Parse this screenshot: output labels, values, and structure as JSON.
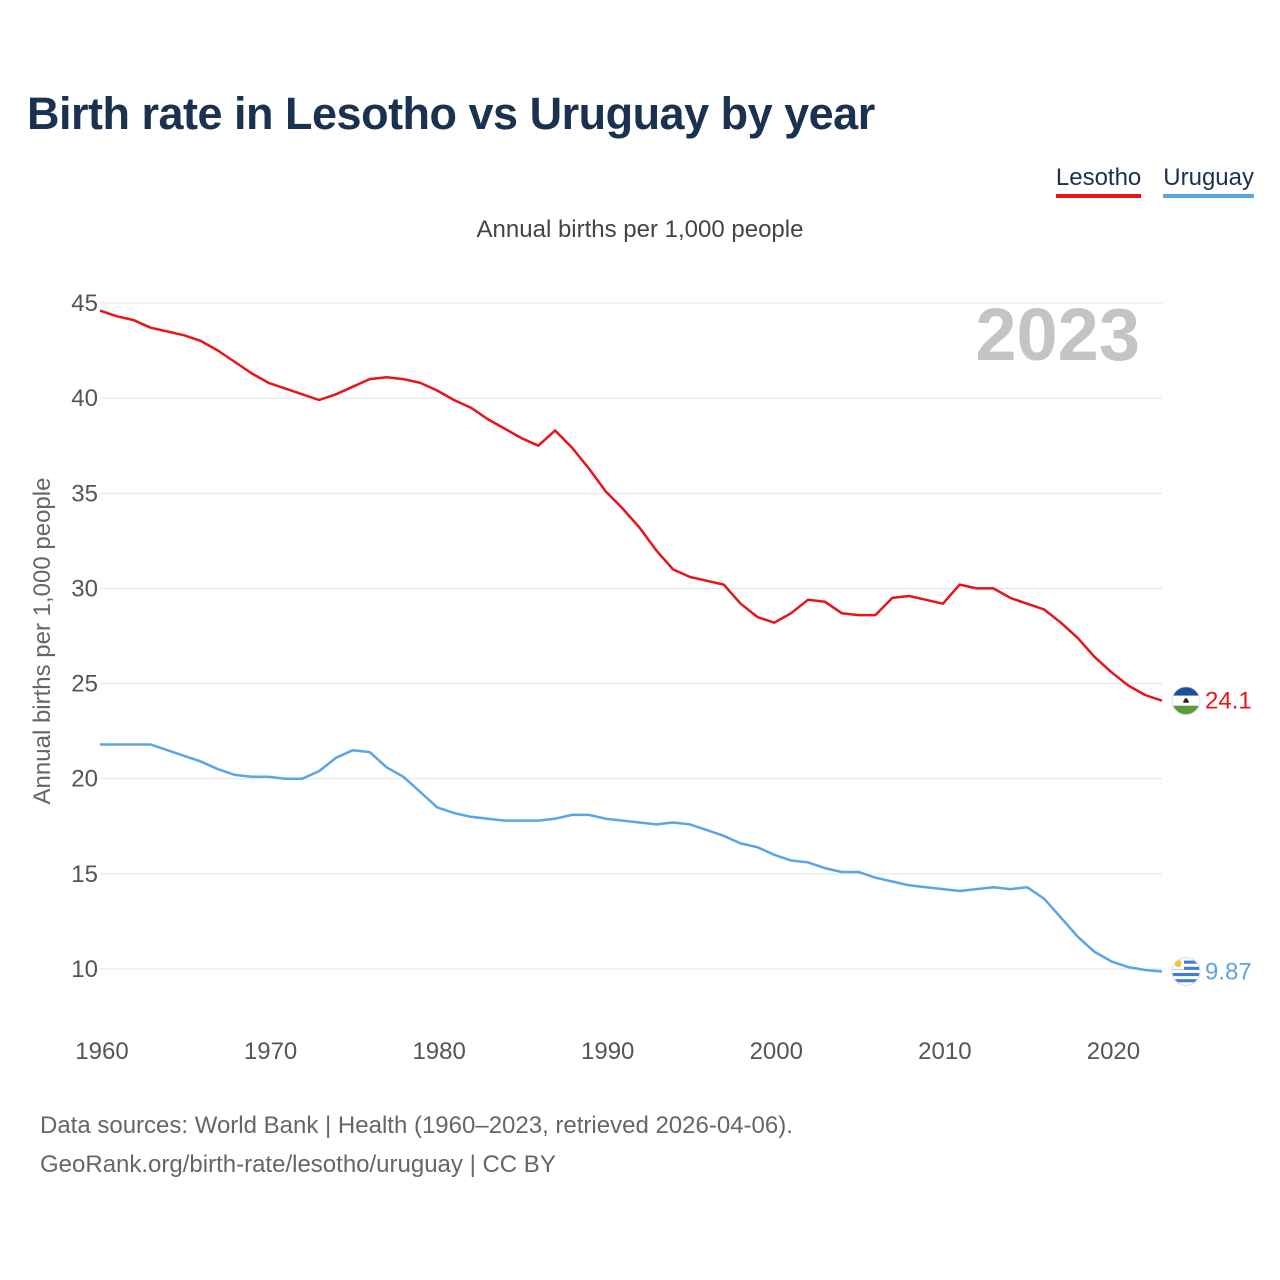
{
  "title": "Birth rate in Lesotho vs Uruguay by year",
  "legend": [
    {
      "name": "Lesotho",
      "color": "#e8141a"
    },
    {
      "name": "Uruguay",
      "color": "#5ba4e5"
    }
  ],
  "subtitle": "Annual births per 1,000 people",
  "year_label": "2023",
  "source": {
    "line1": "Data sources: World Bank | Health (1960–2023, retrieved 2026-04-06).",
    "line2": "GeoRank.org/birth-rate/lesotho/uruguay | CC BY"
  },
  "chart_data": {
    "type": "line",
    "title": "Birth rate in Lesotho vs Uruguay by year",
    "xlabel": "",
    "ylabel": "Annual births per 1,000 people",
    "xlim": [
      1960,
      2023
    ],
    "ylim": [
      10,
      45
    ],
    "xticks": [
      "1960",
      "1970",
      "1980",
      "1990",
      "2000",
      "2010",
      "2020"
    ],
    "yticks": [
      "10",
      "15",
      "20",
      "25",
      "30",
      "35",
      "40",
      "45"
    ],
    "grid": true,
    "x": [
      1960,
      1961,
      1962,
      1963,
      1964,
      1965,
      1966,
      1967,
      1968,
      1969,
      1970,
      1971,
      1972,
      1973,
      1974,
      1975,
      1976,
      1977,
      1978,
      1979,
      1980,
      1981,
      1982,
      1983,
      1984,
      1985,
      1986,
      1987,
      1988,
      1989,
      1990,
      1991,
      1992,
      1993,
      1994,
      1995,
      1996,
      1997,
      1998,
      1999,
      2000,
      2001,
      2002,
      2003,
      2004,
      2005,
      2006,
      2007,
      2008,
      2009,
      2010,
      2011,
      2012,
      2013,
      2014,
      2015,
      2016,
      2017,
      2018,
      2019,
      2020,
      2021,
      2022,
      2023
    ],
    "series": [
      {
        "name": "Lesotho",
        "color": "#e8141a",
        "end_label": "24.1",
        "values": [
          44.6,
          44.3,
          44.1,
          43.7,
          43.5,
          43.3,
          43.0,
          42.5,
          41.9,
          41.3,
          40.8,
          40.5,
          40.2,
          39.9,
          40.2,
          40.6,
          41.0,
          41.1,
          41.0,
          40.8,
          40.4,
          39.9,
          39.5,
          38.9,
          38.4,
          37.9,
          37.5,
          38.3,
          37.4,
          36.3,
          35.1,
          34.2,
          33.2,
          32.0,
          31.0,
          30.6,
          30.4,
          30.2,
          29.2,
          28.5,
          28.2,
          28.7,
          29.4,
          29.3,
          28.7,
          28.6,
          28.6,
          29.5,
          29.6,
          29.4,
          29.2,
          30.2,
          30.0,
          30.0,
          29.5,
          29.2,
          28.9,
          28.2,
          27.4,
          26.4,
          25.6,
          24.9,
          24.4,
          24.1
        ]
      },
      {
        "name": "Uruguay",
        "color": "#5ba4e5",
        "end_label": "9.87",
        "values": [
          21.8,
          21.8,
          21.8,
          21.8,
          21.5,
          21.2,
          20.9,
          20.5,
          20.2,
          20.1,
          20.1,
          20.0,
          20.0,
          20.4,
          21.1,
          21.5,
          21.4,
          20.6,
          20.1,
          19.3,
          18.5,
          18.2,
          18.0,
          17.9,
          17.8,
          17.8,
          17.8,
          17.9,
          18.1,
          18.1,
          17.9,
          17.8,
          17.7,
          17.6,
          17.7,
          17.6,
          17.3,
          17.0,
          16.6,
          16.4,
          16.0,
          15.7,
          15.6,
          15.3,
          15.1,
          15.1,
          14.8,
          14.6,
          14.4,
          14.3,
          14.2,
          14.1,
          14.2,
          14.3,
          14.2,
          14.3,
          13.7,
          12.7,
          11.7,
          10.9,
          10.4,
          10.1,
          9.95,
          9.87
        ]
      }
    ]
  }
}
